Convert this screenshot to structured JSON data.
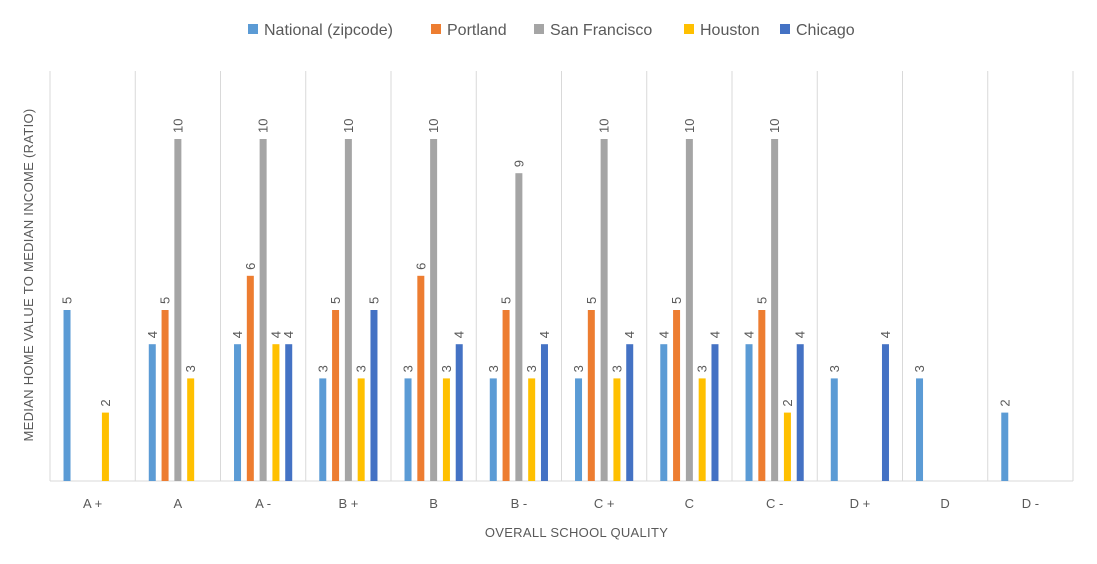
{
  "chart_data": {
    "type": "bar",
    "title": "",
    "xlabel": "OVERALL SCHOOL QUALITY",
    "ylabel": "MEDIAN HOME VALUE TO MEDIAN INCOME (RATIO)",
    "ylim": [
      0,
      10
    ],
    "grid": "vertical category separators",
    "legend_position": "top",
    "categories": [
      "A +",
      "A",
      "A -",
      "B +",
      "B",
      "B -",
      "C +",
      "C",
      "C -",
      "D +",
      "D",
      "D -"
    ],
    "series": [
      {
        "name": "National (zipcode)",
        "color": "#5B9BD5",
        "values": [
          5,
          4,
          4,
          3,
          3,
          3,
          3,
          4,
          4,
          3,
          3,
          2
        ]
      },
      {
        "name": "Portland",
        "color": "#ED7D31",
        "values": [
          null,
          5,
          6,
          5,
          6,
          5,
          5,
          5,
          5,
          null,
          null,
          null
        ]
      },
      {
        "name": "San Francisco",
        "color": "#A5A5A5",
        "values": [
          null,
          10,
          10,
          10,
          10,
          9,
          10,
          10,
          10,
          null,
          null,
          null
        ]
      },
      {
        "name": "Houston",
        "color": "#FFC000",
        "values": [
          2,
          3,
          4,
          3,
          3,
          3,
          3,
          3,
          2,
          null,
          null,
          null
        ]
      },
      {
        "name": "Chicago",
        "color": "#4472C4",
        "values": [
          null,
          null,
          4,
          5,
          4,
          4,
          4,
          4,
          4,
          4,
          null,
          null
        ]
      }
    ]
  }
}
